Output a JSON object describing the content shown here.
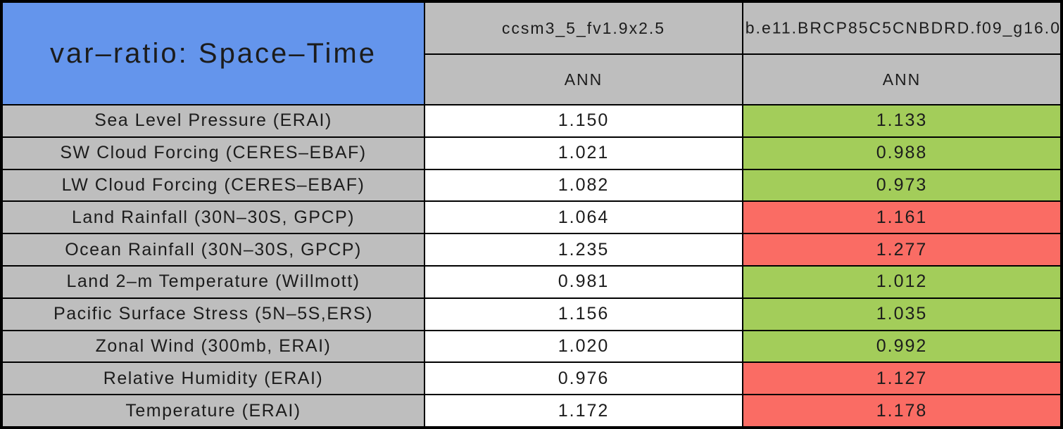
{
  "table": {
    "title": "var–ratio: Space–Time",
    "columns": [
      {
        "model": "ccsm3_5_fv1.9x2.5",
        "season": "ANN"
      },
      {
        "model": "b.e11.BRCP85C5CNBDRD.f09_g16.0",
        "season": "ANN"
      }
    ],
    "rows": [
      {
        "label": "Sea Level Pressure (ERAI)",
        "col1": "1.150",
        "col2": "1.133",
        "col2_status": "green"
      },
      {
        "label": "SW Cloud Forcing (CERES–EBAF)",
        "col1": "1.021",
        "col2": "0.988",
        "col2_status": "green"
      },
      {
        "label": "LW Cloud Forcing (CERES–EBAF)",
        "col1": "1.082",
        "col2": "0.973",
        "col2_status": "green"
      },
      {
        "label": "Land Rainfall (30N–30S, GPCP)",
        "col1": "1.064",
        "col2": "1.161",
        "col2_status": "red"
      },
      {
        "label": "Ocean Rainfall (30N–30S, GPCP)",
        "col1": "1.235",
        "col2": "1.277",
        "col2_status": "red"
      },
      {
        "label": "Land 2–m Temperature (Willmott)",
        "col1": "0.981",
        "col2": "1.012",
        "col2_status": "green"
      },
      {
        "label": "Pacific Surface Stress (5N–5S,ERS)",
        "col1": "1.156",
        "col2": "1.035",
        "col2_status": "green"
      },
      {
        "label": "Zonal Wind (300mb, ERAI)",
        "col1": "1.020",
        "col2": "0.992",
        "col2_status": "green"
      },
      {
        "label": "Relative Humidity (ERAI)",
        "col1": "0.976",
        "col2": "1.127",
        "col2_status": "red"
      },
      {
        "label": "Temperature (ERAI)",
        "col1": "1.172",
        "col2": "1.178",
        "col2_status": "red"
      }
    ]
  },
  "colors": {
    "title_bg": "#6495EC",
    "header_bg": "#BEBEBE",
    "green": "#A3CD5A",
    "red": "#FA6C64",
    "neutral_white": "#FFFFFF",
    "border": "#000000"
  },
  "chart_data": {
    "type": "table",
    "title": "var–ratio: Space–Time",
    "categories": [
      "Sea Level Pressure (ERAI)",
      "SW Cloud Forcing (CERES–EBAF)",
      "LW Cloud Forcing (CERES–EBAF)",
      "Land Rainfall (30N–30S, GPCP)",
      "Ocean Rainfall (30N–30S, GPCP)",
      "Land 2–m Temperature (Willmott)",
      "Pacific Surface Stress (5N–5S,ERS)",
      "Zonal Wind (300mb, ERAI)",
      "Relative Humidity (ERAI)",
      "Temperature (ERAI)"
    ],
    "series": [
      {
        "name": "ccsm3_5_fv1.9x2.5",
        "season": "ANN",
        "values": [
          1.15,
          1.021,
          1.082,
          1.064,
          1.235,
          0.981,
          1.156,
          1.02,
          0.976,
          1.172
        ]
      },
      {
        "name": "b.e11.BRCP85C5CNBDRD.f09_g16.0",
        "season": "ANN",
        "values": [
          1.133,
          0.988,
          0.973,
          1.161,
          1.277,
          1.012,
          1.035,
          0.992,
          1.127,
          1.178
        ],
        "cell_colors": [
          "green",
          "green",
          "green",
          "red",
          "red",
          "green",
          "green",
          "green",
          "red",
          "red"
        ]
      }
    ]
  }
}
